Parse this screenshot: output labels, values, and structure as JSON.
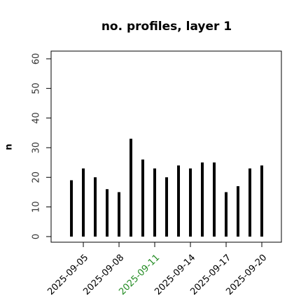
{
  "chart_data": {
    "type": "bar",
    "title": "no. profiles, layer 1",
    "y_label": "n",
    "x": [
      "2025-09-04",
      "2025-09-05",
      "2025-09-06",
      "2025-09-07",
      "2025-09-08",
      "2025-09-09",
      "2025-09-10",
      "2025-09-11",
      "2025-09-12",
      "2025-09-13",
      "2025-09-14",
      "2025-09-15",
      "2025-09-16",
      "2025-09-17",
      "2025-09-18",
      "2025-09-19",
      "2025-09-20"
    ],
    "values": [
      19,
      23,
      20,
      16,
      15,
      33,
      26,
      23,
      20,
      24,
      23,
      25,
      25,
      15,
      17,
      23,
      24
    ],
    "color": "#000000",
    "xlim": [
      "2025-09-02T07:00",
      "2025-09-21T15:30"
    ],
    "xticks": [
      "2025-09-05",
      "2025-09-08",
      "2025-09-11",
      "2025-09-14",
      "2025-09-17",
      "2025-09-20"
    ],
    "xtick_colors": [
      "#000000",
      "#000000",
      "#228b22",
      "#000000",
      "#000000",
      "#000000"
    ],
    "ylim": [
      -1.9,
      62.6
    ],
    "yticks": [
      0,
      10,
      20,
      30,
      40,
      50,
      60
    ],
    "grid": false
  }
}
